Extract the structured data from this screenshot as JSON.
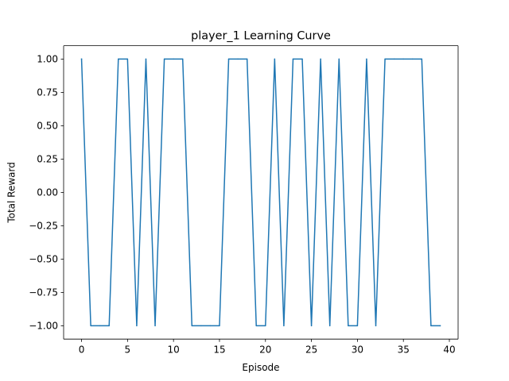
{
  "chart_data": {
    "type": "line",
    "title": "player_1 Learning Curve",
    "xlabel": "Episode",
    "ylabel": "Total Reward",
    "xlim": [
      -1.95,
      40.95
    ],
    "ylim": [
      -1.1,
      1.1
    ],
    "xticks": [
      0,
      5,
      10,
      15,
      20,
      25,
      30,
      35,
      40
    ],
    "xtick_labels": [
      "0",
      "5",
      "10",
      "15",
      "20",
      "25",
      "30",
      "35",
      "40"
    ],
    "yticks": [
      -1.0,
      -0.75,
      -0.5,
      -0.25,
      0.0,
      0.25,
      0.5,
      0.75,
      1.0
    ],
    "ytick_labels": [
      "−1.00",
      "−0.75",
      "−0.50",
      "−0.25",
      "0.00",
      "0.25",
      "0.50",
      "0.75",
      "1.00"
    ],
    "grid": false,
    "series": [
      {
        "name": "player_1",
        "color": "#1f77b4",
        "x": [
          0,
          1,
          2,
          3,
          4,
          5,
          6,
          7,
          8,
          9,
          10,
          11,
          12,
          13,
          14,
          15,
          16,
          17,
          18,
          19,
          20,
          21,
          22,
          23,
          24,
          25,
          26,
          27,
          28,
          29,
          30,
          31,
          32,
          33,
          34,
          35,
          36,
          37,
          38,
          39
        ],
        "values": [
          1,
          -1,
          -1,
          -1,
          1,
          1,
          -1,
          1,
          -1,
          1,
          1,
          1,
          -1,
          -1,
          -1,
          -1,
          1,
          1,
          1,
          -1,
          -1,
          1,
          -1,
          1,
          1,
          -1,
          1,
          -1,
          1,
          -1,
          -1,
          1,
          -1,
          1,
          1,
          1,
          1,
          1,
          -1,
          -1
        ]
      }
    ]
  }
}
